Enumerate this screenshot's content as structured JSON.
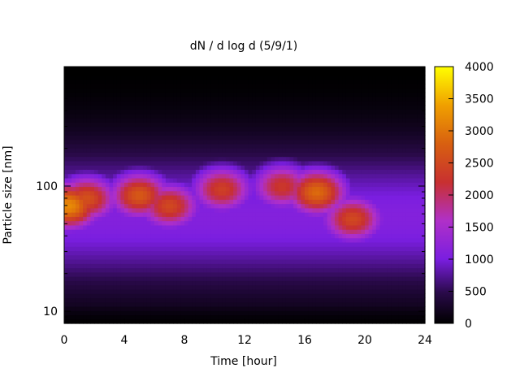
{
  "chart_data": {
    "type": "heatmap",
    "title": "dN / d log d (5/9/1)",
    "xlabel": "Time [hour]",
    "ylabel": "Particle size [nm]",
    "xlim": [
      0,
      24
    ],
    "ylim": [
      8,
      900
    ],
    "yscale": "log",
    "x_ticks": [
      "0",
      "4",
      "8",
      "12",
      "16",
      "20",
      "24"
    ],
    "y_ticks": [
      "10",
      "100"
    ],
    "colorbar": {
      "range": [
        0,
        4000
      ],
      "ticks": [
        "0",
        "500",
        "1000",
        "1500",
        "2000",
        "2500",
        "3000",
        "3500",
        "4000"
      ],
      "colormap": "black-purple-red-orange-yellow"
    },
    "modes": [
      {
        "x": 0.3,
        "size_nm": 70,
        "peak": 3200
      },
      {
        "x": 1.5,
        "size_nm": 80,
        "peak": 2600
      },
      {
        "x": 5.0,
        "size_nm": 85,
        "peak": 2700
      },
      {
        "x": 7.0,
        "size_nm": 70,
        "peak": 2500
      },
      {
        "x": 10.5,
        "size_nm": 95,
        "peak": 2400
      },
      {
        "x": 14.5,
        "size_nm": 100,
        "peak": 2300
      },
      {
        "x": 16.8,
        "size_nm": 90,
        "peak": 2900
      },
      {
        "x": 19.2,
        "size_nm": 55,
        "peak": 2500
      }
    ],
    "grid": false,
    "legend": "colorbar-right"
  }
}
